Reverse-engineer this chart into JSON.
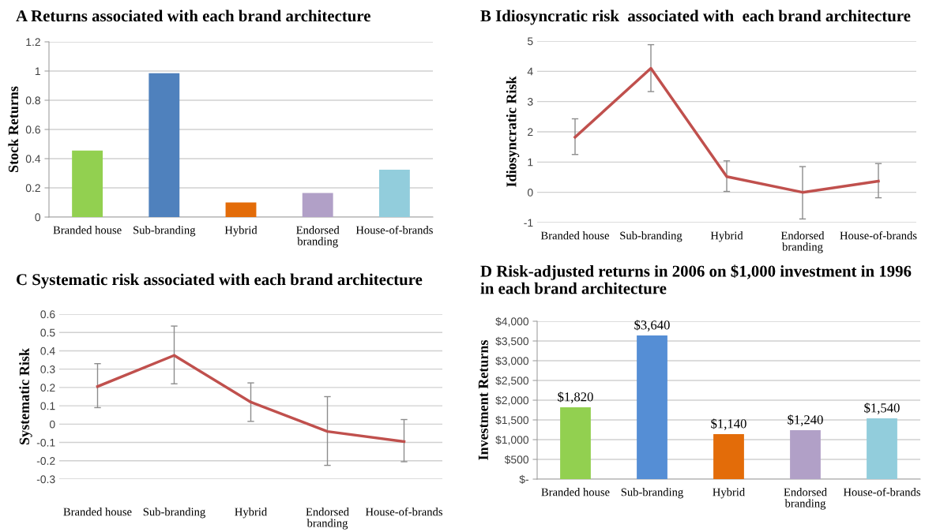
{
  "chart_data": [
    {
      "type": "bar",
      "title": "A Returns associated with each brand architecture",
      "ylabel": "Stock Returns",
      "categories": [
        "Branded house",
        "Sub-branding",
        "Hybrid",
        "Endorsed branding",
        "House-of-brands"
      ],
      "values": [
        0.455,
        0.985,
        0.1,
        0.165,
        0.325
      ],
      "colors": [
        "#92d050",
        "#4f81bd",
        "#e36c09",
        "#b1a0c7",
        "#92cddc"
      ],
      "ylim": [
        0,
        1.2
      ],
      "yticks": [
        0,
        0.2,
        0.4,
        0.6,
        0.8,
        1,
        1.2
      ],
      "grid": "y"
    },
    {
      "type": "line",
      "title": "B Idiosyncratic risk  associated with  each brand architecture",
      "ylabel": "Idiosyncratic Risk",
      "categories": [
        "Branded house",
        "Sub-branding",
        "Hybrid",
        "Endorsed branding",
        "House-of-brands"
      ],
      "series": [
        {
          "color": "#c0504d",
          "values": [
            1.82,
            4.1,
            0.52,
            0.0,
            0.37
          ],
          "errors": [
            [
              1.25,
              2.43
            ],
            [
              3.33,
              4.88
            ],
            [
              0.03,
              1.04
            ],
            [
              -0.88,
              0.85
            ],
            [
              -0.18,
              0.95
            ]
          ]
        }
      ],
      "ylim": [
        -1,
        5
      ],
      "yticks": [
        -1,
        0,
        1,
        2,
        3,
        4,
        5
      ],
      "grid": "y",
      "marker": "none"
    },
    {
      "type": "line",
      "title": "C Systematic risk associated with each brand architecture",
      "ylabel": "Systematic Risk",
      "categories": [
        "Branded house",
        "Sub-branding",
        "Hybrid",
        "Endorsed branding",
        "House-of-brands"
      ],
      "series": [
        {
          "color": "#c0504d",
          "values": [
            0.205,
            0.375,
            0.12,
            -0.04,
            -0.095
          ],
          "errors": [
            [
              0.09,
              0.33
            ],
            [
              0.22,
              0.535
            ],
            [
              0.015,
              0.225
            ],
            [
              -0.225,
              0.15
            ],
            [
              -0.205,
              0.025
            ]
          ]
        }
      ],
      "ylim": [
        -0.3,
        0.6
      ],
      "yticks": [
        -0.3,
        -0.2,
        -0.1,
        0,
        0.1,
        0.2,
        0.3,
        0.4,
        0.5,
        0.6
      ],
      "grid": "y",
      "marker": "none"
    },
    {
      "type": "bar",
      "title": "D Risk-adjusted returns in 2006 on $1,000 investment in 1996 in each brand architecture",
      "ylabel": "Investment Returns",
      "categories": [
        "Branded house",
        "Sub-branding",
        "Hybrid",
        "Endorsed branding",
        "House-of-brands"
      ],
      "values": [
        1820,
        3640,
        1140,
        1240,
        1540
      ],
      "value_labels": [
        "$1,820",
        "$3,640",
        "$1,140",
        "$1,240",
        "$1,540"
      ],
      "colors": [
        "#92d050",
        "#558ed5",
        "#e36c09",
        "#b1a0c7",
        "#92cddc"
      ],
      "ylim": [
        0,
        4000
      ],
      "yticks": [
        {
          "value": 0,
          "label": "$-"
        },
        {
          "value": 500,
          "label": "$500"
        },
        {
          "value": 1000,
          "label": "$1,000"
        },
        {
          "value": 1500,
          "label": "$1,500"
        },
        {
          "value": 2000,
          "label": "$2,000"
        },
        {
          "value": 2500,
          "label": "$2,500"
        },
        {
          "value": 3000,
          "label": "$3,000"
        },
        {
          "value": 3500,
          "label": "$3,500"
        },
        {
          "value": 4000,
          "label": "$4,000"
        }
      ],
      "grid": "y"
    }
  ]
}
